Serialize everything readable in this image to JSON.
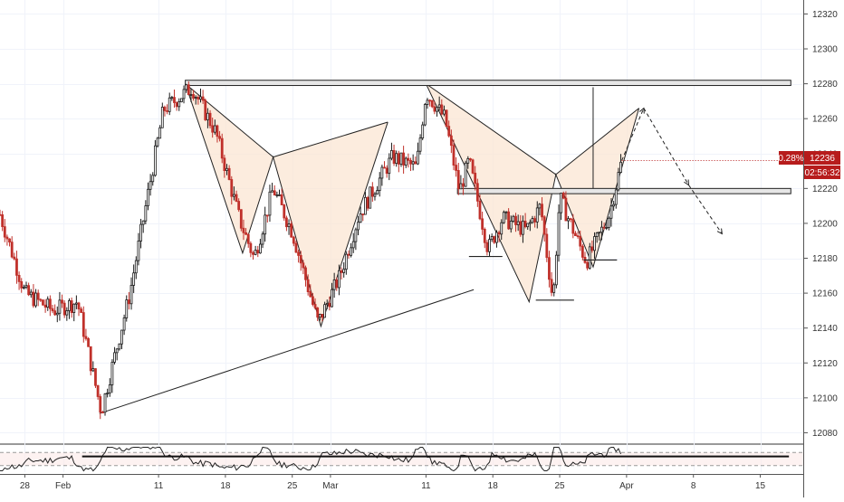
{
  "chart_data": {
    "type": "candlestick",
    "title": "",
    "price_axis": {
      "ticks": [
        "12320",
        "12300",
        "12280",
        "12260",
        "12240",
        "12220",
        "12200",
        "12180",
        "12160",
        "12140",
        "12120",
        "12100",
        "12080"
      ],
      "range": [
        12074,
        12328
      ]
    },
    "time_axis": {
      "ticks": [
        {
          "label": "28",
          "day": -4
        },
        {
          "label": "Feb",
          "day": 0
        },
        {
          "label": "11",
          "day": 10
        },
        {
          "label": "18",
          "day": 17
        },
        {
          "label": "25",
          "day": 24
        },
        {
          "label": "Mar",
          "day": 28
        },
        {
          "label": "11",
          "day": 38
        },
        {
          "label": "18",
          "day": 45
        },
        {
          "label": "25",
          "day": 52
        },
        {
          "label": "Apr",
          "day": 59
        },
        {
          "label": "8",
          "day": 66
        },
        {
          "label": "15",
          "day": 73
        }
      ],
      "range_days": [
        -6.6,
        77.5
      ]
    },
    "last_price": {
      "change": "0.28%",
      "price": "12236",
      "countdown": "02:56:32",
      "value": 12236
    },
    "colors": {
      "up": "#1a1a1a",
      "down": "#c0312b",
      "harmonic_fill": "#fbe6d3",
      "badge": "#b71c1c"
    },
    "anchors": [
      {
        "day": -6.6,
        "price": 12205
      },
      {
        "day": -4.0,
        "price": 12160
      },
      {
        "day": -1.0,
        "price": 12150
      },
      {
        "day": 1.5,
        "price": 12155
      },
      {
        "day": 4.0,
        "price": 12092
      },
      {
        "day": 7.0,
        "price": 12160
      },
      {
        "day": 10.5,
        "price": 12265
      },
      {
        "day": 13.5,
        "price": 12278
      },
      {
        "day": 16.0,
        "price": 12252
      },
      {
        "day": 18.5,
        "price": 12202
      },
      {
        "day": 20.0,
        "price": 12180
      },
      {
        "day": 22.0,
        "price": 12220
      },
      {
        "day": 24.0,
        "price": 12195
      },
      {
        "day": 26.7,
        "price": 12143
      },
      {
        "day": 29.0,
        "price": 12170
      },
      {
        "day": 31.0,
        "price": 12205
      },
      {
        "day": 34.5,
        "price": 12238
      },
      {
        "day": 37.0,
        "price": 12232
      },
      {
        "day": 38.0,
        "price": 12275
      },
      {
        "day": 40.0,
        "price": 12260
      },
      {
        "day": 41.5,
        "price": 12218
      },
      {
        "day": 42.5,
        "price": 12236
      },
      {
        "day": 44.5,
        "price": 12185
      },
      {
        "day": 46.0,
        "price": 12203
      },
      {
        "day": 48.5,
        "price": 12196
      },
      {
        "day": 50.0,
        "price": 12210
      },
      {
        "day": 51.3,
        "price": 12155
      },
      {
        "day": 52.0,
        "price": 12215
      },
      {
        "day": 53.5,
        "price": 12195
      },
      {
        "day": 54.8,
        "price": 12178
      },
      {
        "day": 57.2,
        "price": 12205
      },
      {
        "day": 58.5,
        "price": 12236
      }
    ],
    "volatility": 5,
    "harmonic_patterns": [
      {
        "points": [
          {
            "day": 12.8,
            "price": 12280
          },
          {
            "day": 18.8,
            "price": 12183
          },
          {
            "day": 22.0,
            "price": 12238
          },
          {
            "day": 27.0,
            "price": 12141
          },
          {
            "day": 34.0,
            "price": 12258
          }
        ]
      },
      {
        "points": [
          {
            "day": 38.0,
            "price": 12280
          },
          {
            "day": 48.8,
            "price": 12155
          },
          {
            "day": 51.6,
            "price": 12228
          },
          {
            "day": 55.5,
            "price": 12175
          },
          {
            "day": 60.3,
            "price": 12266
          }
        ]
      }
    ],
    "horizontal_zones": [
      {
        "day_start": 12.8,
        "day_end": 76.2,
        "price_low": 12279,
        "price_high": 12282
      },
      {
        "day_start": 41.3,
        "day_end": 76.2,
        "price_low": 12217,
        "price_high": 12220
      }
    ],
    "trend_lines": [
      {
        "from": {
          "day": 3.8,
          "price": 12091
        },
        "to": {
          "day": 43.0,
          "price": 12162
        }
      }
    ],
    "support_ticks": [
      {
        "day_start": 42.5,
        "day_end": 46.0,
        "price": 12181
      },
      {
        "day_start": 49.5,
        "day_end": 53.5,
        "price": 12156
      },
      {
        "day_start": 54.5,
        "day_end": 58.0,
        "price": 12179
      }
    ],
    "vertical_lines": [
      {
        "day": 55.5,
        "price_top": 12278,
        "price_bottom": 12220
      }
    ],
    "projection": [
      {
        "day": 58.5,
        "price": 12236
      },
      {
        "day": 60.8,
        "price": 12266
      },
      {
        "day": 65.5,
        "price": 12222
      },
      {
        "day": 69.0,
        "price": 12194
      }
    ],
    "oscillator": {
      "type": "line",
      "lines": [
        {
          "day_start": 2.0,
          "day_end": 76.0,
          "level": 0.4
        }
      ],
      "dashed_levels": [
        0.25,
        0.75
      ]
    }
  }
}
